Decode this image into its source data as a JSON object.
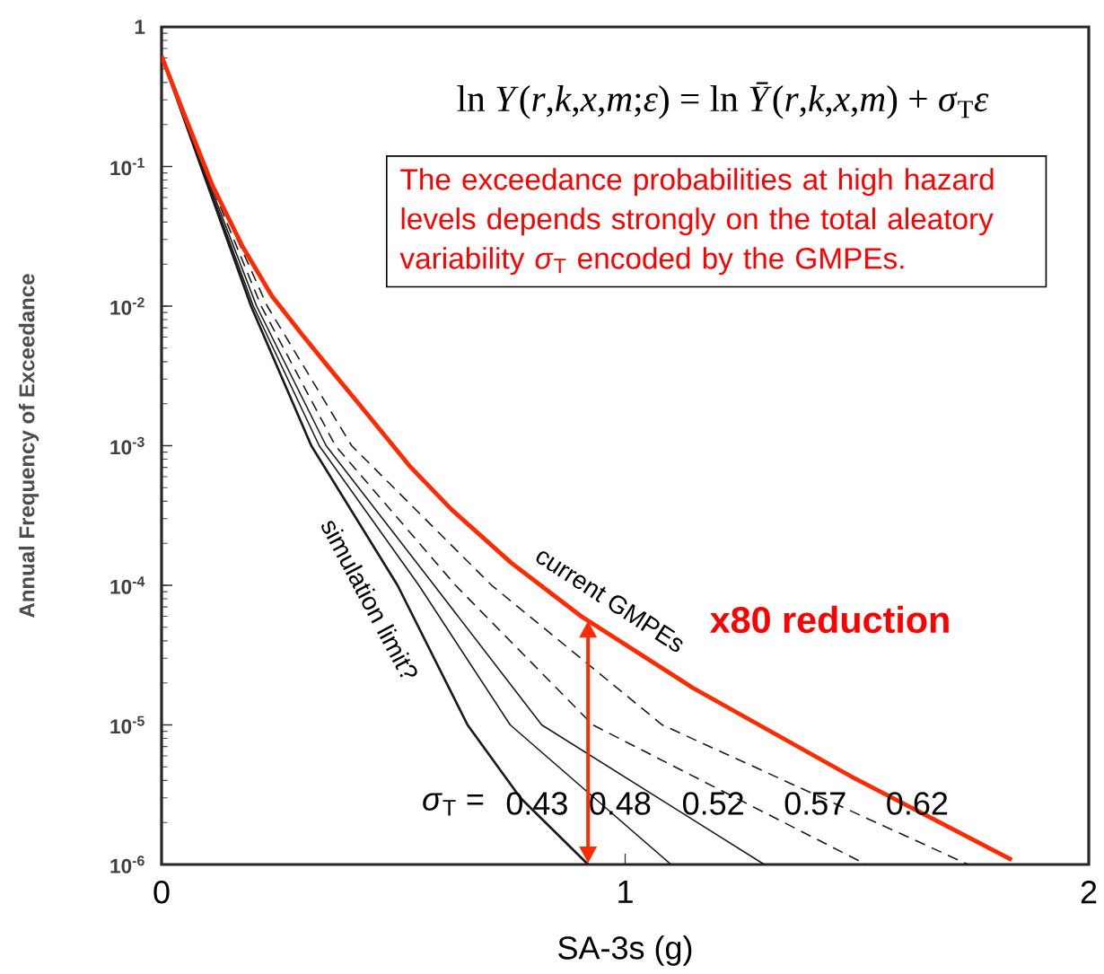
{
  "chart_data": {
    "type": "line",
    "xlabel": "SA-3s (g)",
    "ylabel": "Annual Frequency of Exceedance",
    "xlim": [
      0,
      2
    ],
    "ylim": [
      1e-06,
      1
    ],
    "xticks": [
      0,
      1,
      2
    ],
    "yticks": [
      {
        "value": 1e-06,
        "label": "10$^{-6}$"
      },
      {
        "value": 1e-05,
        "label": "10$^{-5}$"
      },
      {
        "value": 0.0001,
        "label": "10$^{-4}$"
      },
      {
        "value": 0.001,
        "label": "10$^{-3}$"
      },
      {
        "value": 0.01,
        "label": "10$^{-2}$"
      },
      {
        "value": 0.1,
        "label": "10$^{-1}$"
      },
      1
    ],
    "log": "y",
    "series": [
      {
        "name": "0.43",
        "color": "#1a1a1a",
        "line_style": "solid",
        "x": [
          0,
          0.03,
          0.085,
          0.193,
          0.323,
          0.509,
          0.66,
          0.774,
          0.92
        ],
        "values": [
          0.62,
          null,
          0.1,
          0.01,
          0.001,
          0.0001,
          1e-05,
          3e-06,
          1e-06
        ]
      },
      {
        "name": "0.48",
        "color": "#1a1a1a",
        "line_style": "solid",
        "x": [
          0,
          0.03,
          0.087,
          0.198,
          0.34,
          0.555,
          0.752,
          1.099
        ],
        "values": [
          0.62,
          null,
          0.1,
          0.01,
          0.001,
          0.0001,
          1e-05,
          1e-06
        ]
      },
      {
        "name": "0.52",
        "color": "#1a1a1a",
        "line_style": "solid",
        "x": [
          0,
          0.03,
          0.089,
          0.205,
          0.355,
          0.588,
          0.82,
          1.3
        ],
        "values": [
          0.62,
          null,
          0.1,
          0.01,
          0.001,
          0.0001,
          1e-05,
          1e-06
        ]
      },
      {
        "name": "0.57",
        "color": "#1a1a1a",
        "line_style": "dashed",
        "x": [
          0,
          0.03,
          0.091,
          0.215,
          0.375,
          0.634,
          0.93,
          1.52
        ],
        "values": [
          0.62,
          null,
          0.1,
          0.01,
          0.001,
          0.0001,
          1e-05,
          1e-06
        ]
      },
      {
        "name": "0.62",
        "color": "#1a1a1a",
        "line_style": "dashed",
        "x": [
          0,
          0.03,
          0.093,
          0.228,
          0.41,
          0.712,
          1.08,
          1.74
        ],
        "values": [
          0.62,
          null,
          0.1,
          0.01,
          0.001,
          0.0001,
          1e-05,
          1e-06
        ]
      },
      {
        "name": "current GMPEs",
        "color": "#ff2a00",
        "line_style": "solid",
        "x": [
          0,
          0.044,
          0.11,
          0.174,
          0.238,
          0.304,
          0.368,
          0.431,
          0.536,
          0.625,
          0.754,
          0.905,
          1.145,
          1.486,
          1.834
        ],
        "values": [
          0.62,
          0.26,
          0.073,
          0.027,
          0.0118,
          0.0062,
          0.0034,
          0.0019,
          0.00071,
          0.00035,
          0.000145,
          6e-05,
          1.85e-05,
          4.3e-06,
          1.08e-06
        ]
      }
    ],
    "annotations": [
      "ln *Y*(*r*,*k*,*x*,*m*;*ε*) = ln *Ȳ*(*r*,*k*,*x*,*m*) + *σ*$_{T}$*ε*",
      "The exceedance probabilities at high hazard levels depends strongly on the total aleatory variability *σ*$_{T}$ encoded by the GMPEs.",
      "simulation limit?",
      "*σ*$_{T}$ =",
      "x80 reduction"
    ]
  }
}
